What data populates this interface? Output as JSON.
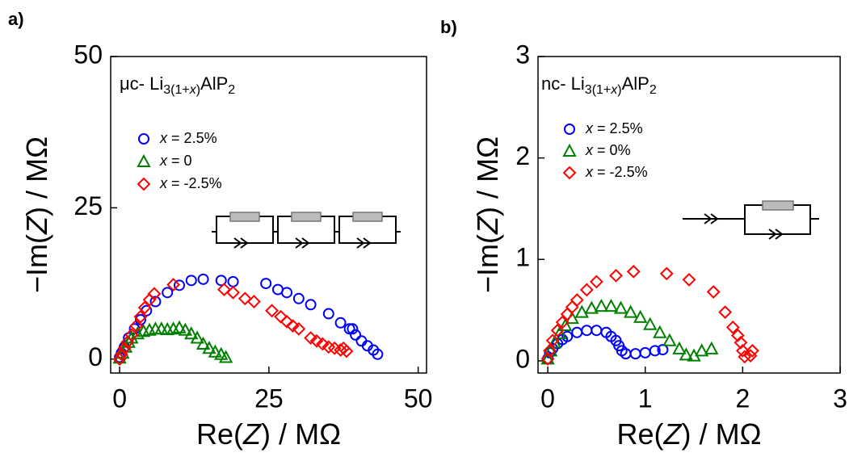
{
  "chart_data": [
    {
      "type": "scatter",
      "panel_label": "a)",
      "title": [
        "μc- Li",
        "3(1+",
        "x",
        ")",
        "AlP",
        "2"
      ],
      "x_label": "Re(Z) / MΩ",
      "y_label": "−Im(Z) / MΩ",
      "xlim": [
        -1.5,
        51.4
      ],
      "ylim": [
        -2.3,
        50
      ],
      "xticks": [
        0,
        25,
        50
      ],
      "yticks": [
        0,
        25,
        50
      ],
      "series": [
        {
          "name": "x =  2.5%",
          "color": "#0000ff",
          "marker": "circle",
          "x": [
            0,
            0.3,
            0.8,
            1.5,
            2.5,
            3.5,
            4.5,
            6,
            8,
            10,
            12,
            14,
            17,
            19,
            24.5,
            26.5,
            28,
            30,
            32,
            35,
            37,
            38.5,
            39,
            39.5,
            40.5,
            41.5,
            42.5,
            43.2
          ],
          "y": [
            0.3,
            1,
            2,
            3.5,
            5,
            6.5,
            8,
            9.5,
            11,
            12.2,
            13,
            13.2,
            13,
            12.8,
            12.5,
            11.5,
            11,
            10,
            9,
            7.5,
            6,
            5,
            5,
            4,
            3,
            2.2,
            1.5,
            0.8
          ]
        },
        {
          "name": "x =  0",
          "color": "#008000",
          "marker": "triangle",
          "x": [
            0,
            0.5,
            1,
            1.5,
            2,
            3,
            4,
            5,
            6,
            7,
            8,
            9,
            10,
            11,
            12,
            13,
            14,
            15,
            16,
            17,
            17.8
          ],
          "y": [
            0.2,
            1,
            2,
            2.8,
            3.5,
            4.2,
            4.6,
            4.8,
            5,
            5,
            4.9,
            5,
            5.2,
            4.8,
            4.2,
            3.5,
            2.5,
            1.8,
            1.2,
            0.8,
            0.3
          ]
        },
        {
          "name": "x =  -2.5%",
          "color": "#ff0000",
          "marker": "diamond",
          "x": [
            0,
            0.3,
            0.8,
            1.3,
            2,
            2.8,
            3.5,
            4.2,
            5,
            5.8,
            9,
            17.5,
            19,
            21,
            22.5,
            25.5,
            27,
            28,
            29,
            30,
            32,
            33,
            34,
            35,
            36,
            37,
            37.5,
            38
          ],
          "y": [
            0,
            0.8,
            1.8,
            2.8,
            4,
            5.5,
            7,
            8.5,
            9.8,
            10.8,
            12.3,
            11.5,
            11,
            10,
            9.5,
            8,
            7,
            6.2,
            5.5,
            5,
            3.5,
            3,
            2.5,
            2,
            1.8,
            1.5,
            1.8,
            1.3
          ]
        }
      ]
    },
    {
      "type": "scatter",
      "panel_label": "b)",
      "title": [
        "nc- Li",
        "3(1+",
        "x",
        ")",
        "AlP",
        "2"
      ],
      "x_label": "Re(Z) / MΩ",
      "y_label": "−Im(Z) / MΩ",
      "xlim": [
        -0.1,
        3
      ],
      "ylim": [
        -0.12,
        3
      ],
      "xticks": [
        0,
        1,
        2,
        3
      ],
      "yticks": [
        0,
        1,
        2,
        3
      ],
      "series": [
        {
          "name": "x =  2.5%",
          "color": "#0000ff",
          "marker": "circle",
          "x": [
            0,
            0.02,
            0.05,
            0.1,
            0.15,
            0.2,
            0.3,
            0.4,
            0.5,
            0.6,
            0.65,
            0.7,
            0.73,
            0.76,
            0.8,
            0.9,
            1.0,
            1.1,
            1.18
          ],
          "y": [
            0.02,
            0.08,
            0.12,
            0.17,
            0.21,
            0.24,
            0.28,
            0.3,
            0.3,
            0.28,
            0.24,
            0.2,
            0.15,
            0.1,
            0.07,
            0.07,
            0.08,
            0.1,
            0.11
          ]
        },
        {
          "name": "x =  0%",
          "color": "#008000",
          "marker": "triangle",
          "x": [
            0,
            0.03,
            0.07,
            0.12,
            0.18,
            0.25,
            0.35,
            0.45,
            0.55,
            0.65,
            0.75,
            0.85,
            0.95,
            1.05,
            1.15,
            1.25,
            1.35,
            1.42,
            1.5,
            1.58,
            1.68
          ],
          "y": [
            0.02,
            0.1,
            0.18,
            0.27,
            0.35,
            0.42,
            0.48,
            0.52,
            0.54,
            0.54,
            0.52,
            0.48,
            0.43,
            0.36,
            0.28,
            0.2,
            0.12,
            0.06,
            0.05,
            0.1,
            0.12
          ]
        },
        {
          "name": "x =  -2.5%",
          "color": "#ff0000",
          "marker": "diamond",
          "x": [
            0,
            0.02,
            0.05,
            0.1,
            0.15,
            0.2,
            0.25,
            0.3,
            0.4,
            0.5,
            0.7,
            0.88,
            1.22,
            1.45,
            1.7,
            1.82,
            1.9,
            1.95,
            1.98,
            2.0,
            2.02,
            2.08,
            2.1
          ],
          "y": [
            0.02,
            0.1,
            0.2,
            0.3,
            0.38,
            0.46,
            0.53,
            0.6,
            0.7,
            0.78,
            0.84,
            0.88,
            0.86,
            0.8,
            0.68,
            0.48,
            0.33,
            0.25,
            0.18,
            0.1,
            0.04,
            0.05,
            0.1
          ]
        }
      ]
    }
  ]
}
